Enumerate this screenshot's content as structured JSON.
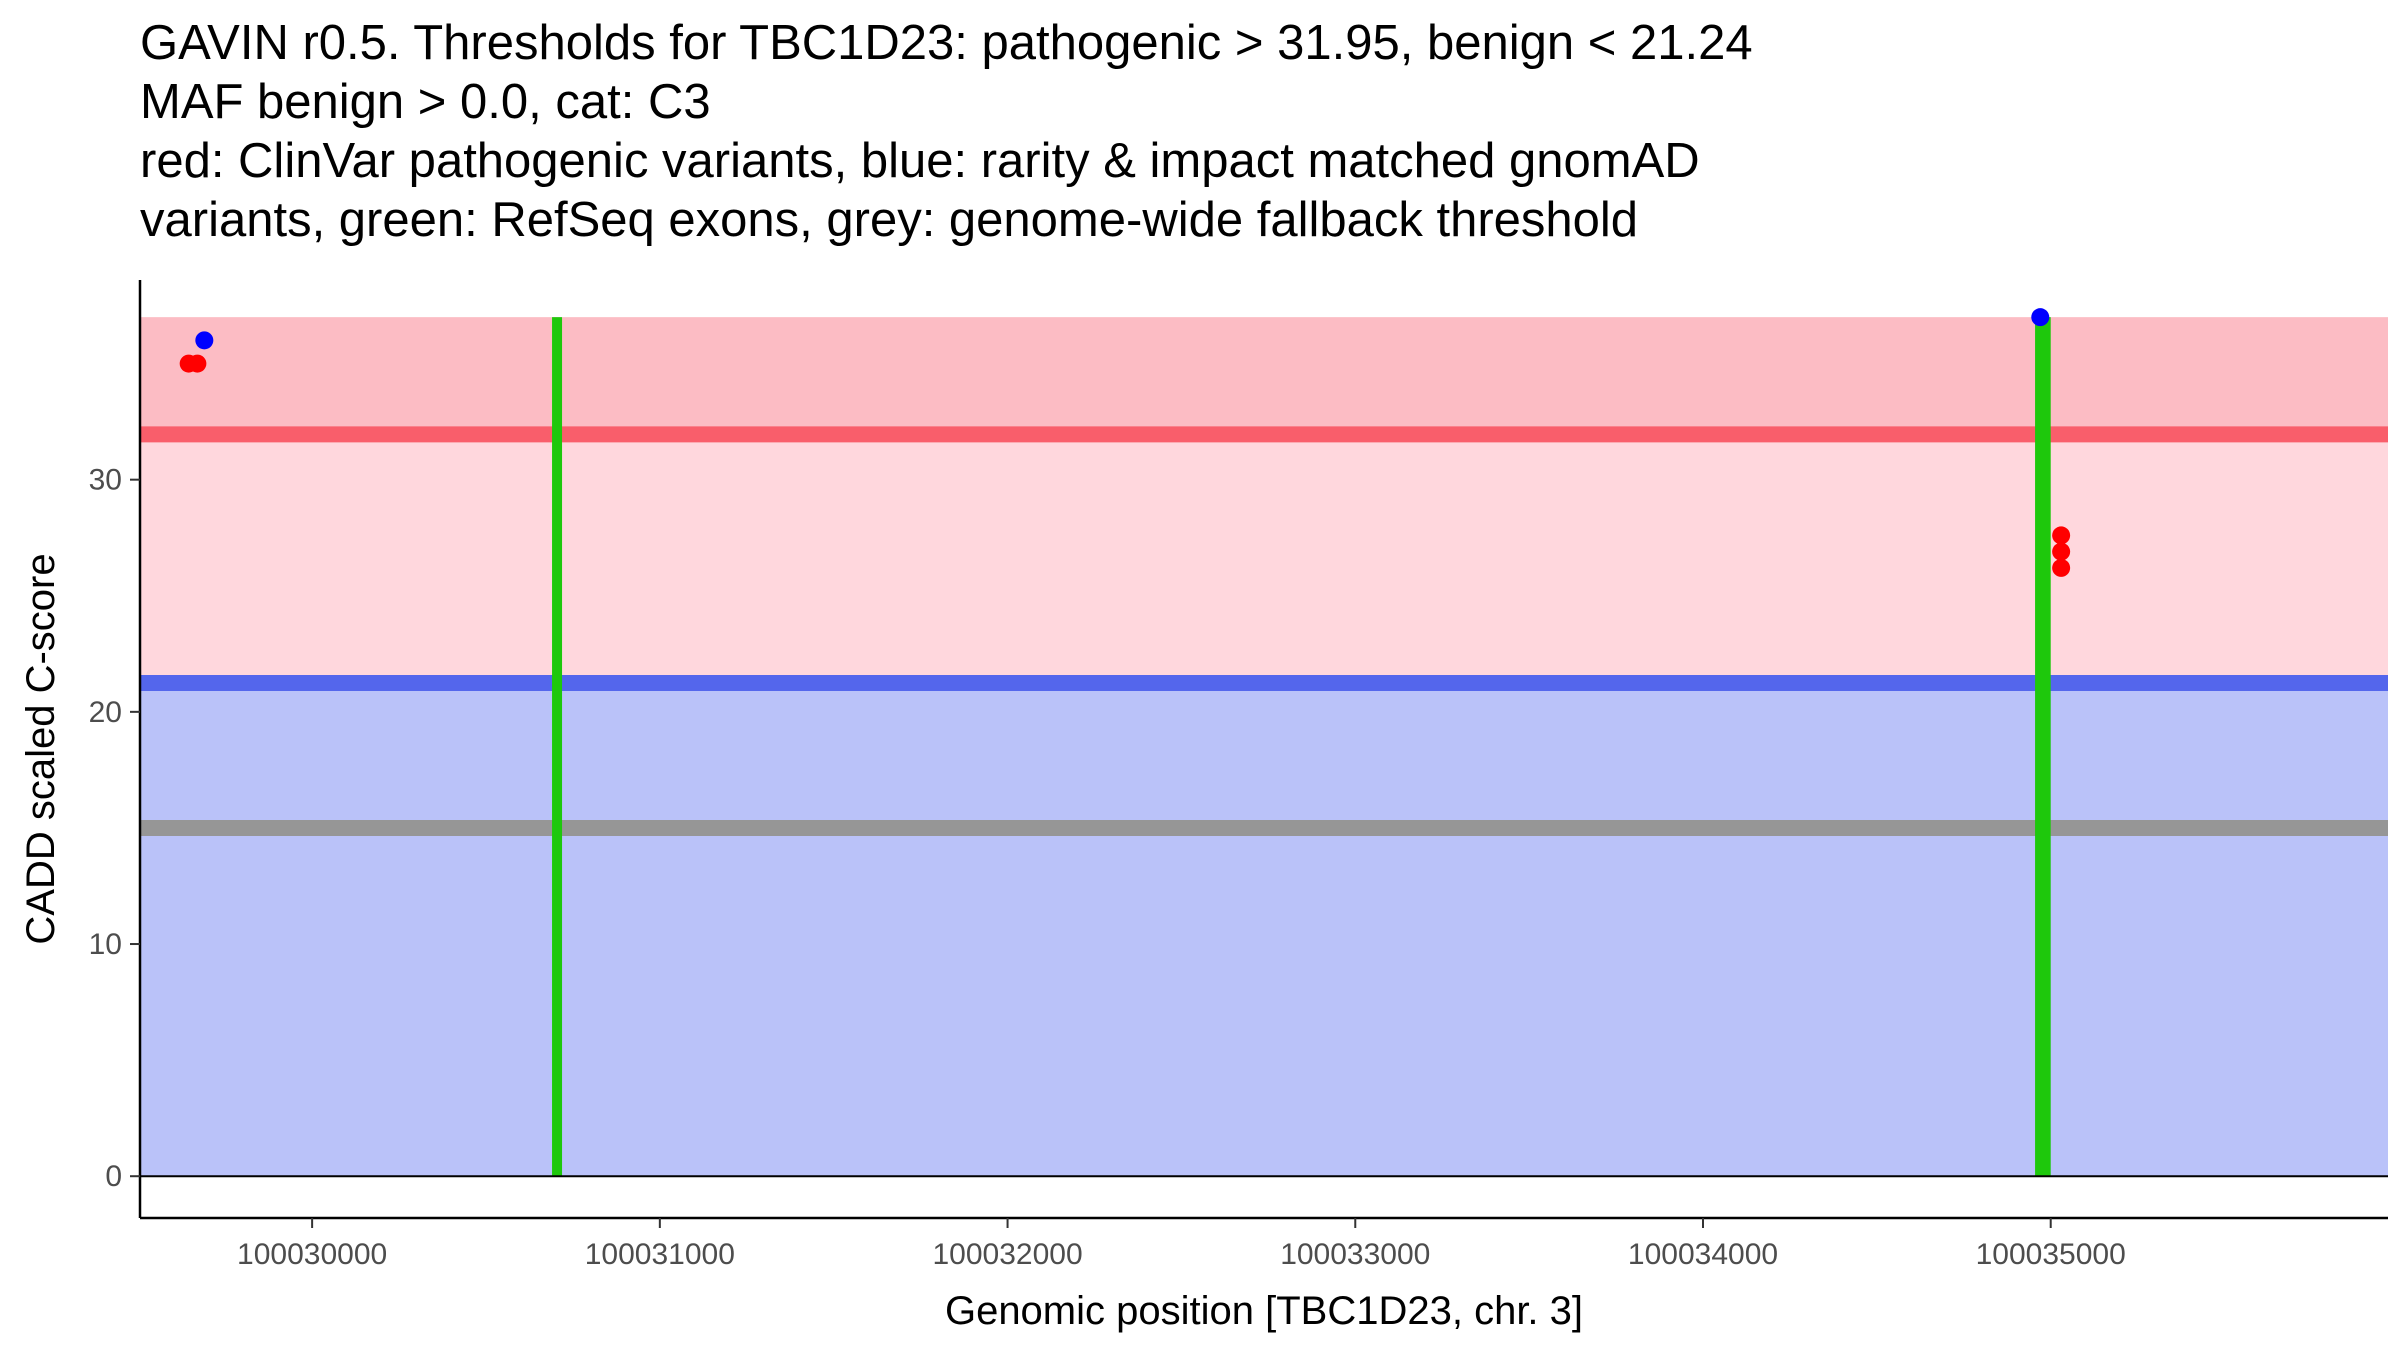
{
  "title_lines": [
    "GAVIN r0.5. Thresholds for TBC1D23: pathogenic > 31.95, benign < 21.24",
    "MAF benign > 0.0, cat: C3",
    "red: ClinVar pathogenic variants, blue: rarity & impact matched gnomAD",
    "variants, green: RefSeq exons, grey: genome-wide fallback threshold"
  ],
  "chart_data": {
    "type": "scatter",
    "title": "GAVIN r0.5. Thresholds for TBC1D23: pathogenic > 31.95, benign < 21.24 MAF benign > 0.0, cat: C3 red: ClinVar pathogenic variants, blue: rarity & impact matched gnomAD variants, green: RefSeq exons, grey: genome-wide fallback threshold",
    "xlabel": "Genomic position [TBC1D23, chr. 3]",
    "ylabel": "CADD scaled C-score",
    "xlim": [
      100029505,
      100035970
    ],
    "ylim": [
      -1.8,
      38.6
    ],
    "x_ticks": [
      100030000,
      100031000,
      100032000,
      100033000,
      100034000,
      100035000
    ],
    "x_tick_labels": [
      "100030000",
      "100031000",
      "100032000",
      "100033000",
      "100034000",
      "100035000"
    ],
    "y_ticks": [
      0,
      10,
      20,
      30
    ],
    "y_tick_labels": [
      "0",
      "10",
      "20",
      "30"
    ],
    "thresholds": {
      "pathogenic": 31.95,
      "benign": 21.24,
      "genome_wide_fallback": 15.0,
      "y_max": 37.0
    },
    "regions": [
      {
        "name": "pathogenic-region",
        "y0": 31.95,
        "y1": 37.0,
        "color": "#fcbcc4"
      },
      {
        "name": "intermediate-region",
        "y0": 21.24,
        "y1": 31.95,
        "color": "#ffd7dd"
      },
      {
        "name": "benign-region",
        "y0": 0,
        "y1": 21.24,
        "color": "#bac2f9"
      }
    ],
    "threshold_lines": [
      {
        "name": "pathogenic-threshold-line",
        "y": 31.95,
        "color": "#f95e6b"
      },
      {
        "name": "benign-threshold-line",
        "y": 21.24,
        "color": "#5466ec"
      },
      {
        "name": "fallback-threshold-line",
        "y": 15.0,
        "color": "#969696"
      }
    ],
    "exons": [
      {
        "start": 100030690,
        "end": 100030715,
        "color": "#1ec80c"
      },
      {
        "start": 100034955,
        "end": 100035000,
        "color": "#1ec80c"
      }
    ],
    "series": [
      {
        "name": "ClinVar pathogenic variants",
        "color": "#ff0000",
        "points": [
          {
            "x": 100029645,
            "y": 35.0
          },
          {
            "x": 100029670,
            "y": 35.0
          },
          {
            "x": 100035030,
            "y": 27.6
          },
          {
            "x": 100035030,
            "y": 26.9
          },
          {
            "x": 100035030,
            "y": 26.2
          }
        ]
      },
      {
        "name": "rarity & impact matched gnomAD variants",
        "color": "#0000ff",
        "points": [
          {
            "x": 100029690,
            "y": 36.0
          },
          {
            "x": 100034970,
            "y": 37.0
          }
        ]
      }
    ]
  }
}
